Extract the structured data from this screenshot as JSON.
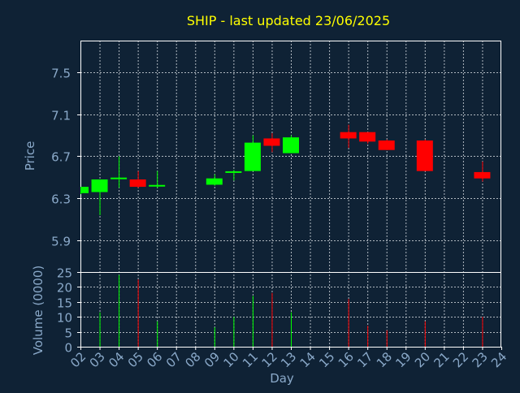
{
  "chart_data": {
    "type": "candlestick",
    "title": "SHIP - last updated 23/06/2025",
    "xlabel": "Day",
    "ylabel": "Price",
    "volume_label": "Volume (0000)",
    "grid": true,
    "price_ylim": [
      5.6,
      7.8
    ],
    "price_ticks": [
      "5.9",
      "6.3",
      "6.7",
      "7.1",
      "7.5"
    ],
    "volume_ylim": [
      0,
      25
    ],
    "volume_ticks": [
      "0",
      "5",
      "10",
      "15",
      "20",
      "25"
    ],
    "x_ticks": [
      "02",
      "03",
      "04",
      "05",
      "06",
      "07",
      "08",
      "09",
      "10",
      "11",
      "12",
      "13",
      "14",
      "15",
      "16",
      "17",
      "18",
      "19",
      "20",
      "21",
      "22",
      "23",
      "24"
    ],
    "candles": [
      {
        "day": 2,
        "open": 6.35,
        "high": 6.41,
        "low": 6.34,
        "close": 6.41,
        "volume": 0
      },
      {
        "day": 3,
        "open": 6.36,
        "high": 6.48,
        "low": 6.14,
        "close": 6.48,
        "volume": 11.5
      },
      {
        "day": 4,
        "open": 6.48,
        "high": 6.7,
        "low": 6.4,
        "close": 6.49,
        "volume": 24
      },
      {
        "day": 5,
        "open": 6.48,
        "high": 6.56,
        "low": 6.4,
        "close": 6.41,
        "volume": 22.5
      },
      {
        "day": 6,
        "open": 6.41,
        "high": 6.56,
        "low": 6.4,
        "close": 6.42,
        "volume": 8.5
      },
      {
        "day": 9,
        "open": 6.43,
        "high": 6.53,
        "low": 6.42,
        "close": 6.49,
        "volume": 6.5
      },
      {
        "day": 10,
        "open": 6.54,
        "high": 6.57,
        "low": 6.47,
        "close": 6.55,
        "volume": 10
      },
      {
        "day": 11,
        "open": 6.56,
        "high": 6.9,
        "low": 6.56,
        "close": 6.83,
        "volume": 17
      },
      {
        "day": 12,
        "open": 6.87,
        "high": 6.92,
        "low": 6.74,
        "close": 6.8,
        "volume": 18
      },
      {
        "day": 13,
        "open": 6.73,
        "high": 6.9,
        "low": 6.73,
        "close": 6.88,
        "volume": 11.5
      },
      {
        "day": 16,
        "open": 6.93,
        "high": 7.0,
        "low": 6.78,
        "close": 6.87,
        "volume": 16
      },
      {
        "day": 17,
        "open": 6.93,
        "high": 6.93,
        "low": 6.82,
        "close": 6.84,
        "volume": 7
      },
      {
        "day": 18,
        "open": 6.85,
        "high": 6.86,
        "low": 6.76,
        "close": 6.76,
        "volume": 5.5
      },
      {
        "day": 20,
        "open": 6.85,
        "high": 6.86,
        "low": 6.56,
        "close": 6.56,
        "volume": 8.5
      },
      {
        "day": 23,
        "open": 6.55,
        "high": 6.65,
        "low": 6.46,
        "close": 6.49,
        "volume": 10
      }
    ],
    "colors": {
      "background": "#0f2235",
      "up": "#00ff00",
      "down": "#ff0000",
      "axis": "#ffffff",
      "tick_text": "#8aa9c9",
      "title_text": "#ffff00",
      "grid": "#b0b8c0"
    }
  }
}
